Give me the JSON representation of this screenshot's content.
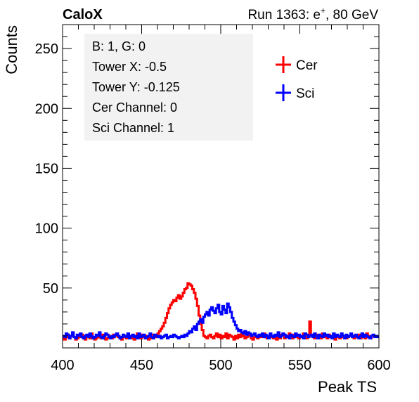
{
  "header": {
    "brand": "CaloX",
    "run_text": "Run 1363: e",
    "run_sup": "+",
    "run_energy": ", 80 GeV"
  },
  "info_box": {
    "lines": [
      "B: 1, G: 0",
      "Tower X: -0.5",
      "Tower Y: -0.125",
      "Cer Channel: 0",
      "Sci Channel: 1"
    ]
  },
  "chart_data": {
    "type": "line",
    "title": "",
    "xlabel": "Peak TS",
    "ylabel": "Counts",
    "xlim": [
      400,
      600
    ],
    "ylim": [
      0,
      270
    ],
    "x_ticks": [
      400,
      450,
      500,
      550,
      600
    ],
    "y_ticks": [
      50,
      100,
      150,
      200,
      250
    ],
    "legend_position": "top-right",
    "grid": false,
    "series": [
      {
        "name": "Cer",
        "color": "#ff0000",
        "x_start": 400,
        "bin_width": 1,
        "values": [
          8,
          7,
          9,
          11,
          8,
          10,
          12,
          9,
          7,
          8,
          10,
          9,
          11,
          8,
          7,
          9,
          10,
          8,
          12,
          9,
          7,
          8,
          9,
          10,
          8,
          11,
          9,
          7,
          8,
          10,
          9,
          8,
          11,
          10,
          12,
          9,
          8,
          7,
          10,
          9,
          8,
          11,
          9,
          10,
          8,
          7,
          9,
          12,
          10,
          8,
          11,
          9,
          8,
          10,
          7,
          9,
          8,
          11,
          10,
          9,
          12,
          14,
          16,
          18,
          21,
          25,
          29,
          33,
          36,
          38,
          40,
          39,
          42,
          44,
          41,
          43,
          46,
          49,
          50,
          54,
          53,
          52,
          49,
          46,
          41,
          35,
          27,
          20,
          15,
          10,
          9,
          8,
          10,
          11,
          9,
          8,
          10,
          12,
          9,
          11,
          8,
          10,
          9,
          12,
          8,
          11,
          10,
          9,
          7,
          10,
          8,
          11,
          9,
          12,
          10,
          8,
          9,
          11,
          10,
          8,
          7,
          9,
          10,
          8,
          11,
          9,
          10,
          12,
          9,
          8,
          10,
          11,
          9,
          8,
          10,
          7,
          9,
          8,
          11,
          10,
          8,
          9,
          10,
          12,
          9,
          8,
          11,
          10,
          9,
          8,
          10,
          9,
          12,
          11,
          8,
          9,
          22,
          10,
          9,
          8,
          11,
          10,
          9,
          8,
          12,
          10,
          9,
          8,
          11,
          10,
          9,
          8,
          7,
          9,
          10,
          8,
          11,
          9,
          10,
          8,
          9,
          10,
          12,
          9,
          8,
          10,
          9,
          11,
          8,
          10,
          9,
          8,
          12,
          9,
          10,
          8
        ]
      },
      {
        "name": "Sci",
        "color": "#0000ff",
        "x_start": 400,
        "bin_width": 1,
        "values": [
          10,
          9,
          12,
          11,
          8,
          10,
          13,
          9,
          8,
          11,
          10,
          12,
          9,
          8,
          10,
          11,
          9,
          12,
          10,
          8,
          9,
          11,
          10,
          13,
          9,
          8,
          10,
          12,
          11,
          9,
          8,
          10,
          9,
          11,
          12,
          10,
          8,
          9,
          11,
          10,
          9,
          12,
          8,
          10,
          11,
          9,
          10,
          8,
          12,
          9,
          10,
          11,
          8,
          9,
          10,
          12,
          9,
          8,
          11,
          10,
          9,
          10,
          8,
          9,
          10,
          11,
          8,
          9,
          10,
          9,
          11,
          10,
          9,
          8,
          9,
          10,
          9,
          11,
          10,
          12,
          14,
          13,
          16,
          18,
          15,
          20,
          22,
          24,
          21,
          26,
          28,
          30,
          27,
          32,
          34,
          31,
          29,
          33,
          36,
          30,
          28,
          35,
          32,
          29,
          37,
          34,
          30,
          25,
          22,
          19,
          16,
          14,
          15,
          13,
          12,
          14,
          11,
          13,
          12,
          10,
          11,
          12,
          10,
          9,
          11,
          10,
          12,
          9,
          11,
          10,
          8,
          12,
          10,
          9,
          11,
          10,
          13,
          9,
          10,
          12,
          11,
          9,
          10,
          8,
          11,
          10,
          9,
          12,
          10,
          11,
          9,
          10,
          8,
          12,
          11,
          9,
          10,
          11,
          9,
          12,
          10,
          8,
          11,
          10,
          9,
          12,
          10,
          11,
          9,
          10,
          8,
          12,
          9,
          11,
          10,
          9,
          12,
          10,
          8,
          11,
          9,
          10,
          12,
          9,
          10,
          11,
          9,
          8,
          10,
          12,
          9,
          11,
          10,
          9,
          8,
          10,
          11,
          9,
          10,
          9
        ]
      }
    ]
  }
}
